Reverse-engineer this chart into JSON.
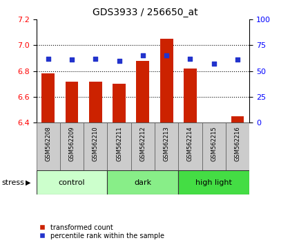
{
  "title": "GDS3933 / 256650_at",
  "samples": [
    "GSM562208",
    "GSM562209",
    "GSM562210",
    "GSM562211",
    "GSM562212",
    "GSM562213",
    "GSM562214",
    "GSM562215",
    "GSM562216"
  ],
  "transformed_count": [
    6.78,
    6.72,
    6.72,
    6.7,
    6.88,
    7.05,
    6.82,
    6.4,
    6.45
  ],
  "percentile_rank": [
    62,
    61,
    62,
    60,
    65,
    65,
    62,
    57,
    61
  ],
  "ylim_left": [
    6.4,
    7.2
  ],
  "ylim_right": [
    0,
    100
  ],
  "yticks_left": [
    6.4,
    6.6,
    6.8,
    7.0,
    7.2
  ],
  "yticks_right": [
    0,
    25,
    50,
    75,
    100
  ],
  "groups": [
    {
      "label": "control",
      "color": "#ccffcc"
    },
    {
      "label": "dark",
      "color": "#88ee88"
    },
    {
      "label": "high light",
      "color": "#44dd44"
    }
  ],
  "bar_color": "#cc2200",
  "dot_color": "#2233cc",
  "bar_width": 0.55,
  "tick_bg_color": "#cccccc",
  "stress_label": "stress",
  "legend_red_label": "transformed count",
  "legend_blue_label": "percentile rank within the sample",
  "title_fontsize": 10,
  "axis_fontsize": 8,
  "sample_fontsize": 6,
  "group_fontsize": 8,
  "legend_fontsize": 7
}
